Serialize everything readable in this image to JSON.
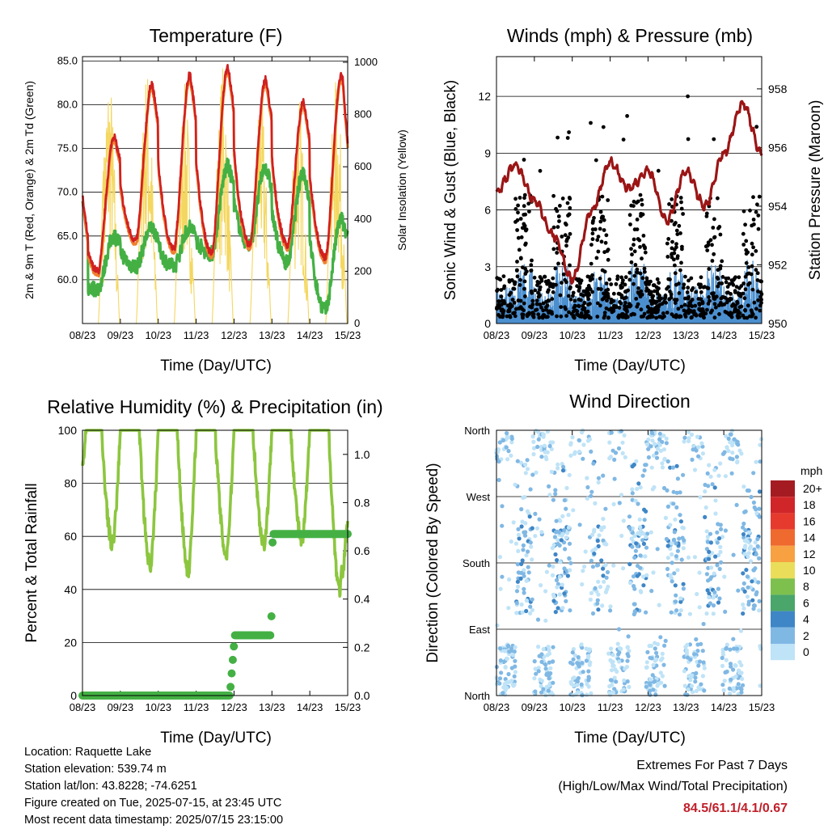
{
  "x_ticks": [
    "08/23",
    "09/23",
    "10/23",
    "11/23",
    "12/23",
    "13/23",
    "14/23",
    "15/23"
  ],
  "x_label": "Time (Day/UTC)",
  "charts": {
    "temp": {
      "title": "Temperature (F)",
      "ylabel_left": "2m & 9m T (Red, Orange) & 2m Td (Green)",
      "ylabel_right": "Solar Insolation (Yellow)",
      "left_ticks": [
        "85.0",
        "80.0",
        "75.0",
        "70.0",
        "65.0",
        "60.0"
      ],
      "right_ticks": [
        "1000",
        "800",
        "600",
        "400",
        "200",
        "0"
      ]
    },
    "wind": {
      "title": "Winds (mph) & Pressure (mb)",
      "ylabel_left": "Sonic Wind & Gust (Blue, Black)",
      "ylabel_right": "Station Pressure (Maroon)",
      "left_ticks": [
        "12",
        "9",
        "6",
        "3",
        "0"
      ],
      "right_ticks": [
        "958",
        "956",
        "954",
        "952",
        "950"
      ]
    },
    "rh": {
      "title": "Relative Humidity (%) & Precipitation (in)",
      "ylabel_left": "Percent & Total Rainfall",
      "left_ticks": [
        "100",
        "80",
        "60",
        "40",
        "20",
        "0"
      ],
      "right_ticks": [
        "1.0",
        "0.8",
        "0.6",
        "0.4",
        "0.2",
        "0.0"
      ]
    },
    "dir": {
      "title": "Wind Direction",
      "ylabel_left": "Direction (Colored By Speed)",
      "left_ticks": [
        "North",
        "West",
        "South",
        "East",
        "North"
      ],
      "legend_title": "mph",
      "legend_labels": [
        "20+",
        "18",
        "16",
        "14",
        "12",
        "10",
        "8",
        "6",
        "4",
        "2",
        "0"
      ],
      "legend_colors": [
        "#a41c22",
        "#d0262a",
        "#e63a2e",
        "#ef6a2e",
        "#f7a143",
        "#e9dd5a",
        "#7ec04e",
        "#4aa66a",
        "#3f86c6",
        "#80b8e4",
        "#bfe3f7"
      ]
    }
  },
  "chart_data": [
    {
      "type": "line",
      "title": "Temperature (F)",
      "xlabel": "Time (Day/UTC)",
      "ylabel": "2m & 9m T (Red, Orange) & 2m Td (Green)",
      "ylabel_right": "Solar Insolation (Yellow)",
      "ylim": [
        55.0,
        85.5
      ],
      "ylim_right": [
        0,
        1000
      ],
      "x": [
        "08/23",
        "09/23",
        "10/23",
        "11/23",
        "12/23",
        "13/23",
        "14/23",
        "15/23"
      ],
      "series": [
        {
          "name": "2m T",
          "color": "#d02020",
          "daily_max": [
            76.5,
            82.5,
            83.5,
            84.5,
            83.0,
            80.5,
            83.5
          ],
          "daily_min": [
            61.0,
            64.5,
            63.5,
            63.0,
            64.0,
            64.0,
            62.5
          ],
          "last": 75.5
        },
        {
          "name": "9m T",
          "color": "#f08030"
        },
        {
          "name": "2m Td",
          "color": "#44b044",
          "daily_max": [
            65.0,
            66.0,
            66.0,
            73.0,
            73.0,
            72.5,
            67.0
          ],
          "daily_min": [
            59.0,
            61.5,
            61.5,
            63.0,
            64.0,
            62.0,
            56.5
          ]
        },
        {
          "name": "Solar Insolation",
          "color": "#f4d760",
          "daily_peak": [
            990,
            1000,
            920,
            1000,
            920,
            920,
            950
          ]
        }
      ]
    },
    {
      "type": "scatter",
      "title": "Winds (mph) & Pressure (mb)",
      "xlabel": "Time (Day/UTC)",
      "ylabel": "Sonic Wind & Gust (Blue, Black)",
      "ylabel_right": "Station Pressure (Maroon)",
      "ylim": [
        0,
        12
      ],
      "ylim_right": [
        950,
        958
      ],
      "x": [
        "08/23",
        "09/23",
        "10/23",
        "11/23",
        "12/23",
        "13/23",
        "14/23",
        "15/23"
      ],
      "series": [
        {
          "name": "Gust",
          "color": "#000000",
          "typical_range": [
            0,
            7
          ],
          "max": 12.0
        },
        {
          "name": "Sonic Wind",
          "color": "#4b8fcf",
          "typical_range": [
            0,
            3.5
          ],
          "max": 4.1
        },
        {
          "name": "Station Pressure",
          "color": "#9b1515",
          "path": [
            954.5,
            955.4,
            954.2,
            953.0,
            951.5,
            953.8,
            955.5,
            954.6,
            955.2,
            953.5,
            955.2,
            954.0,
            955.8,
            957.5,
            955.8
          ]
        }
      ]
    },
    {
      "type": "line",
      "title": "Relative Humidity (%) & Precipitation (in)",
      "xlabel": "Time (Day/UTC)",
      "ylabel": "Percent & Total Rainfall",
      "ylim": [
        0,
        100
      ],
      "ylim_right": [
        0,
        1.1
      ],
      "x": [
        "08/23",
        "09/23",
        "10/23",
        "11/23",
        "12/23",
        "13/23",
        "14/23",
        "15/23"
      ],
      "series": [
        {
          "name": "Relative Humidity",
          "color": "#8cc63f",
          "daily_max": [
            100,
            100,
            100,
            100,
            100,
            100,
            100
          ],
          "daily_min": [
            57,
            49,
            47,
            53,
            57,
            58,
            40
          ]
        },
        {
          "name": "Total Precipitation",
          "color": "#44b044",
          "steps": [
            [
              "08/23",
              0.0
            ],
            [
              "11/23 21h",
              0.02
            ],
            [
              "12/23",
              0.25
            ],
            [
              "13/23",
              0.67
            ],
            [
              "15/23",
              0.67
            ]
          ]
        }
      ]
    },
    {
      "type": "scatter",
      "title": "Wind Direction",
      "xlabel": "Time (Day/UTC)",
      "ylabel": "Direction (Colored By Speed)",
      "y_categories": [
        "North",
        "East",
        "South",
        "West",
        "North"
      ],
      "ylim": [
        0,
        360
      ],
      "colorbar_unit": "mph",
      "colorbar_levels": [
        0,
        2,
        4,
        6,
        8,
        10,
        12,
        14,
        16,
        18,
        20
      ]
    }
  ],
  "footer": {
    "location": "Location: Raquette Lake",
    "elevation": "Station elevation: 539.74 m",
    "latlon": "Station lat/lon: 43.8228; -74.6251",
    "created": "Figure created on Tue, 2025-07-15, at 23:45 UTC",
    "timestamp": "Most recent data timestamp: 2025/07/15 23:15:00"
  },
  "extremes": {
    "title": "Extremes For Past 7 Days",
    "subtitle": "(High/Low/Max Wind/Total Precipitation)",
    "values": "84.5/61.1/4.1/0.67"
  }
}
